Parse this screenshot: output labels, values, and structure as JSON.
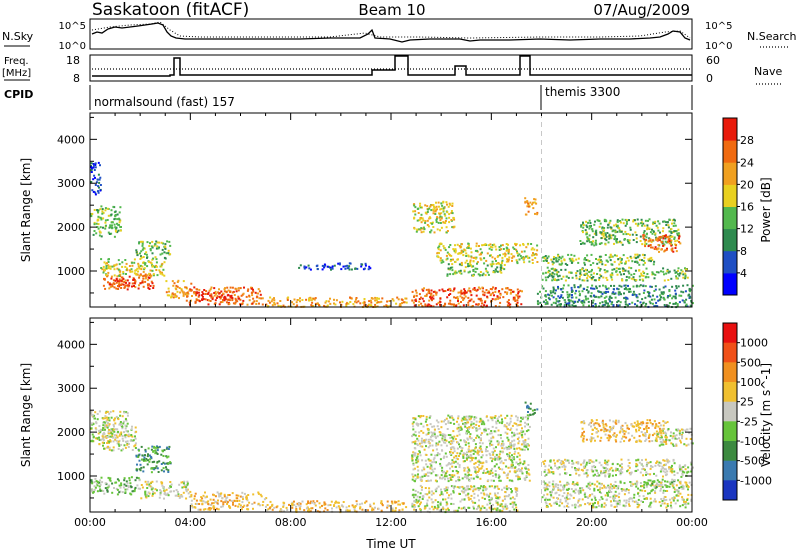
{
  "header": {
    "station": "Saskatoon (fitACF)",
    "beam": "Beam 10",
    "date": "07/Aug/2009"
  },
  "strips": {
    "nsky_label": "N.Sky",
    "nsky_ticks": [
      "10^5",
      "10^0"
    ],
    "nsearch_label": "N.Search",
    "nsearch_ticks": [
      "10^5",
      "10^0"
    ],
    "freq_label_1": "Freq.",
    "freq_label_2": "[MHz]",
    "freq_ticks": [
      "18",
      "8"
    ],
    "nave_label": "Nave",
    "nave_ticks": [
      "60",
      "0"
    ],
    "cpid_label": "CPID",
    "cpid_segments": [
      {
        "label": "normalsound (fast) 157",
        "start_hour": 0
      },
      {
        "label": "themis 3300",
        "start_hour": 18
      }
    ]
  },
  "chart_data": [
    {
      "type": "heatmap",
      "panel": "power",
      "xlabel": "",
      "ylabel": "Slant Range [km]",
      "xlim": [
        0,
        24
      ],
      "ylim": [
        180,
        4600
      ],
      "yticks": [
        "1000",
        "2000",
        "3000",
        "4000"
      ],
      "colorbar": {
        "label": "Power [dB]",
        "ticks": [
          "4",
          "8",
          "12",
          "16",
          "20",
          "24",
          "28"
        ],
        "colors": [
          "#0000ff",
          "#1f4fc4",
          "#2e8a4e",
          "#52b84d",
          "#e8d020",
          "#f0a020",
          "#f06a10",
          "#e81a0a"
        ]
      },
      "regions": [
        {
          "t": [
            0.0,
            1.2
          ],
          "r": [
            1800,
            2500
          ],
          "level": 3
        },
        {
          "t": [
            0.0,
            0.4
          ],
          "r": [
            2700,
            3500
          ],
          "level": 1
        },
        {
          "t": [
            0.5,
            2.5
          ],
          "r": [
            600,
            950
          ],
          "level": 6
        },
        {
          "t": [
            0.8,
            1.8
          ],
          "r": [
            650,
            850
          ],
          "level": 7
        },
        {
          "t": [
            0.4,
            3.0
          ],
          "r": [
            900,
            1300
          ],
          "level": 4
        },
        {
          "t": [
            1.8,
            3.2
          ],
          "r": [
            1300,
            1700
          ],
          "level": 3
        },
        {
          "t": [
            3.0,
            4.0
          ],
          "r": [
            400,
            800
          ],
          "level": 5
        },
        {
          "t": [
            3.8,
            6.8
          ],
          "r": [
            250,
            650
          ],
          "level": 6
        },
        {
          "t": [
            4.3,
            5.8
          ],
          "r": [
            330,
            560
          ],
          "level": 7
        },
        {
          "t": [
            6.8,
            12.6
          ],
          "r": [
            200,
            420
          ],
          "level": 5
        },
        {
          "t": [
            8.2,
            11.2
          ],
          "r": [
            1050,
            1200
          ],
          "level": 1
        },
        {
          "t": [
            12.8,
            17.2
          ],
          "r": [
            200,
            650
          ],
          "level": 6
        },
        {
          "t": [
            12.8,
            14.5
          ],
          "r": [
            1900,
            2600
          ],
          "level": 4
        },
        {
          "t": [
            13.8,
            17.8
          ],
          "r": [
            1200,
            1650
          ],
          "level": 4
        },
        {
          "t": [
            14.2,
            16.5
          ],
          "r": [
            900,
            1200
          ],
          "level": 3
        },
        {
          "t": [
            17.3,
            17.8
          ],
          "r": [
            2300,
            2700
          ],
          "level": 5
        },
        {
          "t": [
            18.0,
            22.5
          ],
          "r": [
            1150,
            1400
          ],
          "level": 3
        },
        {
          "t": [
            18.0,
            23.8
          ],
          "r": [
            800,
            1100
          ],
          "level": 3
        },
        {
          "t": [
            19.5,
            23.5
          ],
          "r": [
            1600,
            2200
          ],
          "level": 3
        },
        {
          "t": [
            22.0,
            23.5
          ],
          "r": [
            1450,
            1850
          ],
          "level": 6
        },
        {
          "t": [
            17.8,
            24.0
          ],
          "r": [
            200,
            700
          ],
          "level": 2
        }
      ]
    },
    {
      "type": "heatmap",
      "panel": "velocity",
      "xlabel": "Time UT",
      "ylabel": "Slant Range [km]",
      "xlim": [
        0,
        24
      ],
      "ylim": [
        180,
        4600
      ],
      "xticks": [
        "00:00",
        "04:00",
        "08:00",
        "12:00",
        "16:00",
        "20:00",
        "00:00"
      ],
      "yticks": [
        "1000",
        "2000",
        "3000",
        "4000"
      ],
      "colorbar": {
        "label": "Velocity [m s^-1]",
        "ticks": [
          "1000",
          "500",
          "100",
          "25",
          "-25",
          "-100",
          "-500",
          "-1000"
        ],
        "colors": [
          "#1a35c0",
          "#3a7ab0",
          "#3c8a40",
          "#66c43a",
          "#c8c8c0",
          "#f0c030",
          "#f09020",
          "#f05018",
          "#e81010"
        ]
      },
      "regions": [
        {
          "t": [
            0.0,
            1.5
          ],
          "r": [
            1800,
            2500
          ],
          "level": 4
        },
        {
          "t": [
            0.3,
            1.8
          ],
          "r": [
            1600,
            2200
          ],
          "level": 4
        },
        {
          "t": [
            0.0,
            2.0
          ],
          "r": [
            600,
            1000
          ],
          "level": 3
        },
        {
          "t": [
            1.8,
            3.2
          ],
          "r": [
            1100,
            1700
          ],
          "level": 2
        },
        {
          "t": [
            2.0,
            4.0
          ],
          "r": [
            500,
            900
          ],
          "level": 4
        },
        {
          "t": [
            4.0,
            7.0
          ],
          "r": [
            250,
            650
          ],
          "level": 5
        },
        {
          "t": [
            7.0,
            12.6
          ],
          "r": [
            200,
            450
          ],
          "level": 5
        },
        {
          "t": [
            12.8,
            17.5
          ],
          "r": [
            900,
            2400
          ],
          "level": 4
        },
        {
          "t": [
            12.8,
            17.0
          ],
          "r": [
            200,
            800
          ],
          "level": 4
        },
        {
          "t": [
            17.3,
            17.8
          ],
          "r": [
            2400,
            2700
          ],
          "level": 2
        },
        {
          "t": [
            18.0,
            24.0
          ],
          "r": [
            1000,
            1400
          ],
          "level": 4
        },
        {
          "t": [
            19.5,
            23.0
          ],
          "r": [
            1800,
            2300
          ],
          "level": 5
        },
        {
          "t": [
            22.5,
            24.0
          ],
          "r": [
            1700,
            2100
          ],
          "level": 4
        },
        {
          "t": [
            18.0,
            24.0
          ],
          "r": [
            300,
            900
          ],
          "level": 4
        },
        {
          "t": [
            22.0,
            23.5
          ],
          "r": [
            750,
            950
          ],
          "level": 3
        }
      ]
    }
  ]
}
